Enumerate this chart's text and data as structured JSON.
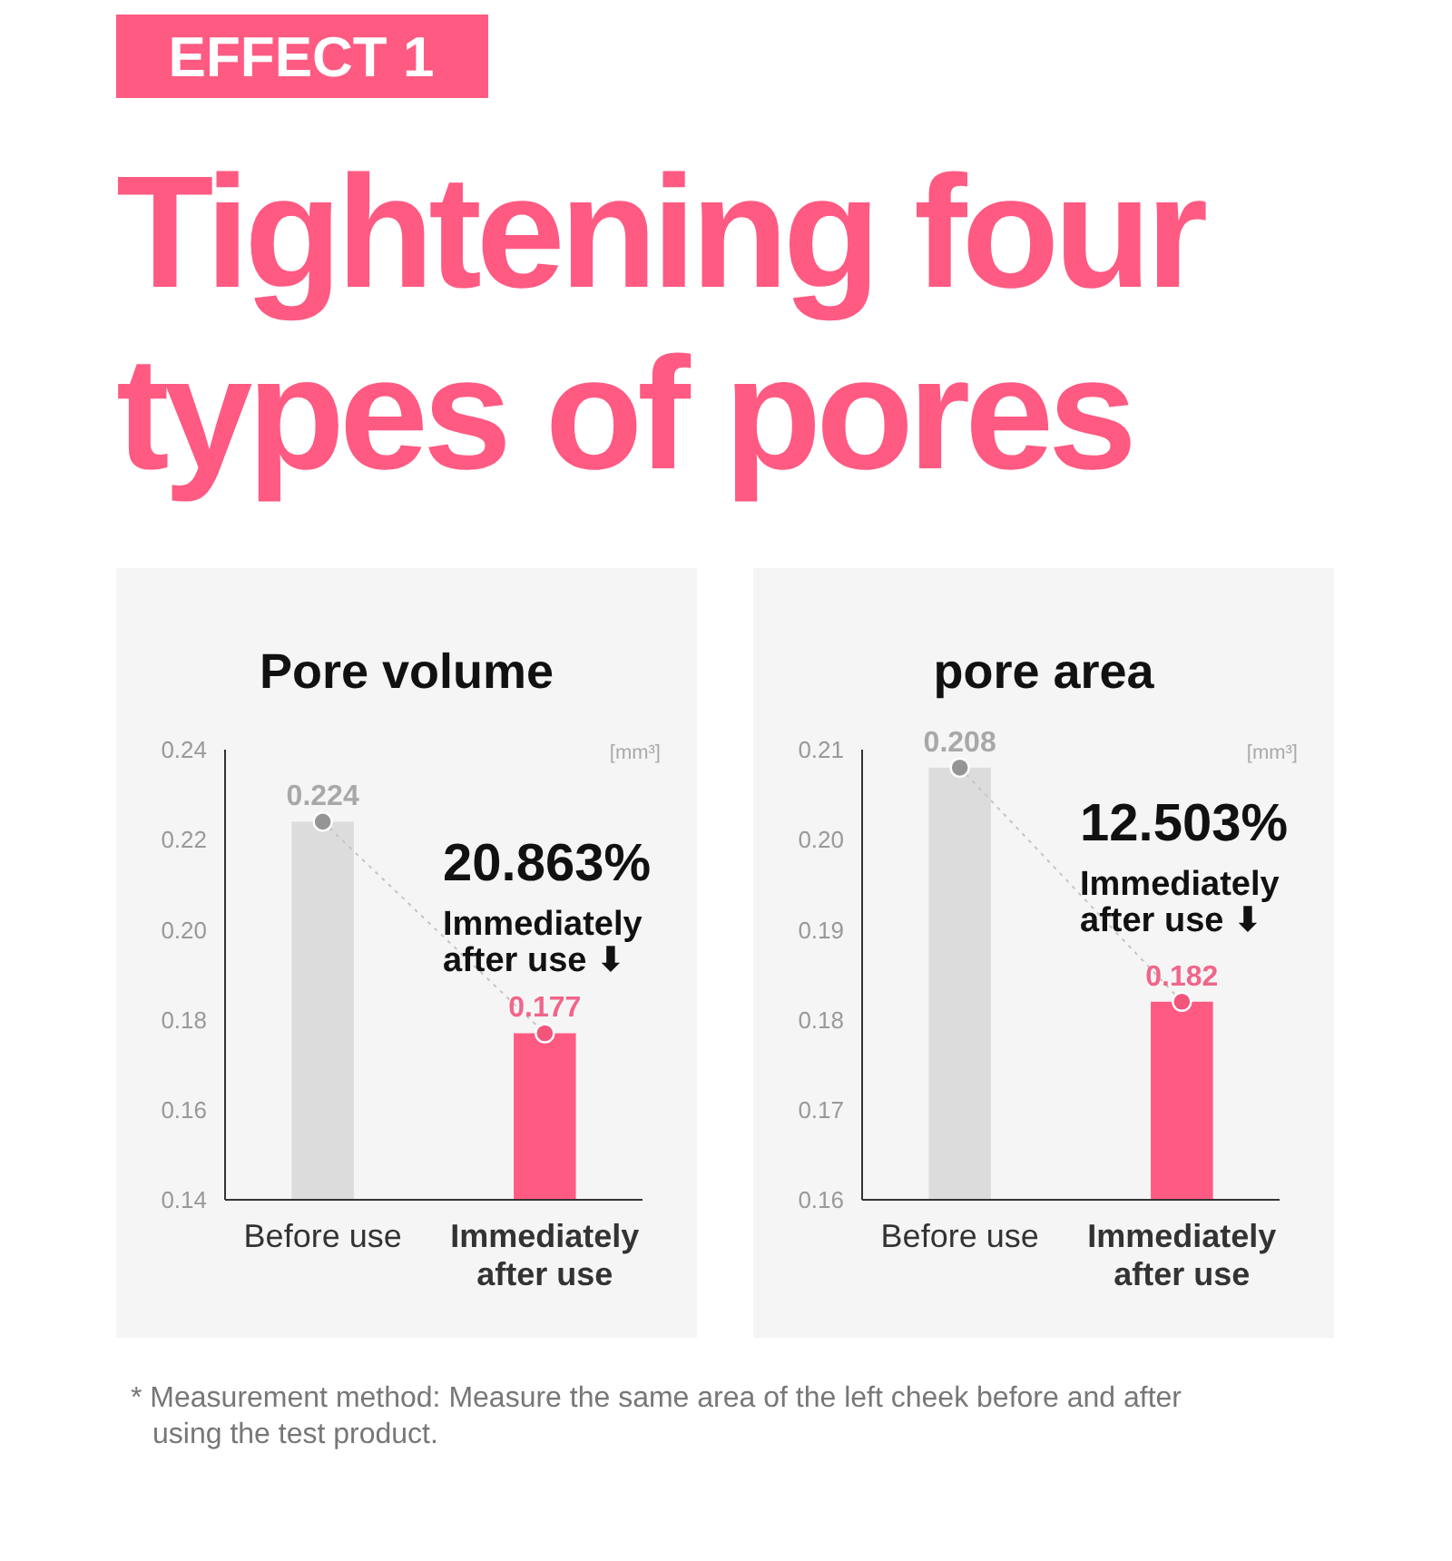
{
  "chart_data": [
    {
      "type": "bar",
      "title": "Pore volume",
      "ylabel": "[mm³]",
      "categories": [
        "Before use",
        "Immediately after use"
      ],
      "series": [
        {
          "colors": [
            "#dcdcdc",
            "#ff5a82"
          ],
          "values": [
            0.224,
            0.177
          ]
        }
      ],
      "marker": "circle",
      "line_style": "dotted",
      "ylim": [
        0.14,
        0.24
      ],
      "yticks": [
        "0.14",
        "0.16",
        "0.18",
        "0.20",
        "0.22",
        "0.24"
      ],
      "data_labels": true,
      "grid": false,
      "legend": false,
      "annotations": [
        "EFFECT 1",
        "Tightening four types of pores",
        "20.863%",
        "Immediately\nafter use ⬇"
      ]
    },
    {
      "type": "bar",
      "title": "pore area",
      "ylabel": "[mm³]",
      "categories": [
        "Before use",
        "Immediately after use"
      ],
      "series": [
        {
          "colors": [
            "#dcdcdc",
            "#ff5a82"
          ],
          "values": [
            0.208,
            0.182
          ]
        }
      ],
      "marker": "circle",
      "line_style": "dotted",
      "ylim": [
        0.16,
        0.21
      ],
      "yticks": [
        "0.16",
        "0.17",
        "0.18",
        "0.19",
        "0.20",
        "0.21"
      ],
      "data_labels": true,
      "grid": false,
      "legend": false,
      "annotations": [
        "12.503%",
        "Immediately\nafter use ⬇",
        "* Measurement method: Measure the same area of the left cheek before and after\nusing the test product."
      ]
    }
  ]
}
